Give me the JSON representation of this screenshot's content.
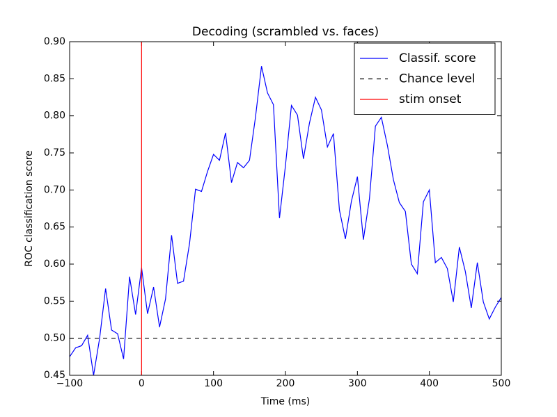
{
  "chart_data": {
    "type": "line",
    "title": "Decoding (scrambled vs. faces)",
    "xlabel": "Time (ms)",
    "ylabel": "ROC classification score",
    "x": [
      -100,
      -91.7,
      -83.3,
      -75,
      -66.7,
      -58.3,
      -50,
      -41.7,
      -33.3,
      -25,
      -16.7,
      -8.3,
      0,
      8.3,
      16.7,
      25,
      33.3,
      41.7,
      50,
      58.3,
      66.7,
      75,
      83.3,
      91.7,
      100,
      108.3,
      116.7,
      125,
      133.3,
      141.7,
      150,
      158.3,
      166.7,
      175,
      183.3,
      191.7,
      200,
      208.3,
      216.7,
      225,
      233.3,
      241.7,
      250,
      258.3,
      266.7,
      275,
      283.3,
      291.7,
      300,
      308.3,
      316.7,
      325,
      333.3,
      341.7,
      350,
      358.3,
      366.7,
      375,
      383.3,
      391.7,
      400,
      408.3,
      416.7,
      425,
      433.3,
      441.7,
      450,
      458.3,
      466.7,
      475,
      483.3,
      491.7,
      500
    ],
    "series": [
      {
        "name": "Classif. score",
        "color": "#0000ff",
        "values": [
          0.475,
          0.487,
          0.49,
          0.504,
          0.45,
          0.5,
          0.567,
          0.511,
          0.506,
          0.472,
          0.583,
          0.532,
          0.595,
          0.533,
          0.569,
          0.515,
          0.553,
          0.639,
          0.574,
          0.577,
          0.628,
          0.701,
          0.698,
          0.725,
          0.748,
          0.74,
          0.777,
          0.71,
          0.737,
          0.73,
          0.74,
          0.798,
          0.867,
          0.831,
          0.815,
          0.662,
          0.733,
          0.814,
          0.801,
          0.742,
          0.79,
          0.825,
          0.808,
          0.758,
          0.776,
          0.673,
          0.634,
          0.685,
          0.718,
          0.633,
          0.688,
          0.786,
          0.798,
          0.76,
          0.714,
          0.683,
          0.671,
          0.6,
          0.587,
          0.684,
          0.7,
          0.602,
          0.609,
          0.594,
          0.549,
          0.623,
          0.59,
          0.541,
          0.602,
          0.549,
          0.526,
          0.542,
          0.555
        ]
      }
    ],
    "hlines": [
      {
        "name": "Chance level",
        "y": 0.5,
        "color": "#000000",
        "style": "dashed"
      }
    ],
    "vlines": [
      {
        "name": "stim onset",
        "x": 0,
        "color": "#ff0000",
        "style": "solid"
      }
    ],
    "xlim": [
      -100,
      500
    ],
    "xticks": [
      {
        "value": -100,
        "label": "−100"
      },
      0,
      100,
      200,
      300,
      400,
      500
    ],
    "ylim": [
      0.45,
      0.9
    ],
    "yticks": [
      0.45,
      {
        "value": 0.5,
        "label": "0.50"
      },
      0.55,
      {
        "value": 0.6,
        "label": "0.60"
      },
      0.65,
      {
        "value": 0.7,
        "label": "0.70"
      },
      0.75,
      {
        "value": 0.8,
        "label": "0.80"
      },
      0.85,
      {
        "value": 0.9,
        "label": "0.90"
      }
    ],
    "legend": "upper right"
  }
}
